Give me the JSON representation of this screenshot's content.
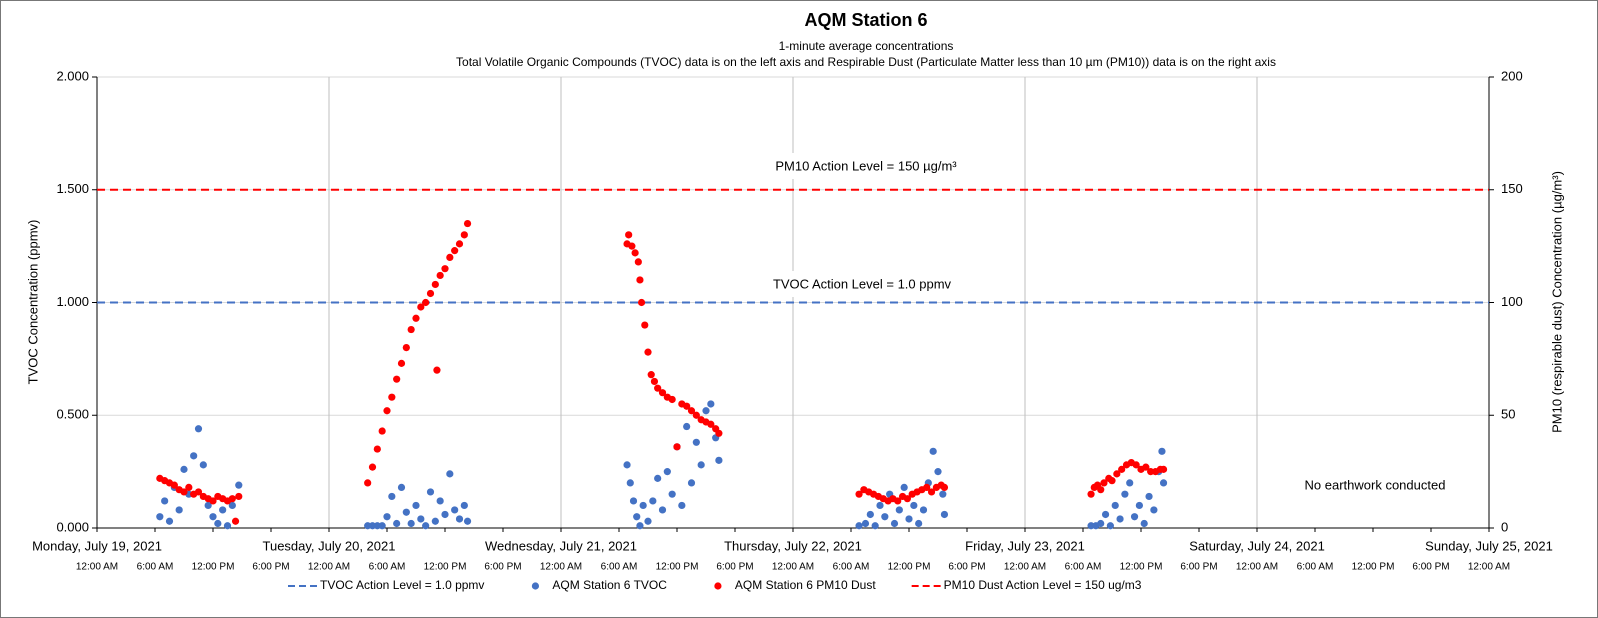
{
  "chart_data": {
    "type": "scatter",
    "title": "AQM Station 6",
    "subtitle": "1-minute average concentrations",
    "subtitle2": "Total Volatile Organic Compounds (TVOC) data is on the left axis and Respirable Dust (Particulate Matter less than 10 µm (PM10)) data is on the right axis",
    "ylabel": "TVOC Concentration (ppmv)",
    "y2label": "PM10 (respirable dust) Concentration (µg/m³)",
    "xlim": [
      "2021-07-19 00:00",
      "2021-07-25 00:00"
    ],
    "xticks": [
      {
        "value": "2021-07-19 00:00",
        "label": "Monday, July 19, 2021"
      },
      {
        "value": "2021-07-20 00:00",
        "label": "Tuesday, July 20, 2021"
      },
      {
        "value": "2021-07-21 00:00",
        "label": "Wednesday, July 21, 2021"
      },
      {
        "value": "2021-07-22 00:00",
        "label": "Thursday, July 22, 2021"
      },
      {
        "value": "2021-07-23 00:00",
        "label": "Friday, July 23, 2021"
      },
      {
        "value": "2021-07-24 00:00",
        "label": "Saturday, July 24, 2021"
      },
      {
        "value": "2021-07-25 00:00",
        "label": "Sunday, July 25, 2021"
      }
    ],
    "xticks_time": [
      {
        "value": "2021-07-19 00:00",
        "label": "12:00 AM"
      },
      {
        "value": "2021-07-19 06:00",
        "label": "6:00 AM"
      },
      {
        "value": "2021-07-19 12:00",
        "label": "12:00 PM"
      },
      {
        "value": "2021-07-19 18:00",
        "label": "6:00 PM"
      },
      {
        "value": "2021-07-20 00:00",
        "label": "12:00 AM"
      },
      {
        "value": "2021-07-20 06:00",
        "label": "6:00 AM"
      },
      {
        "value": "2021-07-20 12:00",
        "label": "12:00 PM"
      },
      {
        "value": "2021-07-20 18:00",
        "label": "6:00 PM"
      },
      {
        "value": "2021-07-21 00:00",
        "label": "12:00 AM"
      },
      {
        "value": "2021-07-21 06:00",
        "label": "6:00 AM"
      },
      {
        "value": "2021-07-21 12:00",
        "label": "12:00 PM"
      },
      {
        "value": "2021-07-21 18:00",
        "label": "6:00 PM"
      },
      {
        "value": "2021-07-22 00:00",
        "label": "12:00 AM"
      },
      {
        "value": "2021-07-22 06:00",
        "label": "6:00 AM"
      },
      {
        "value": "2021-07-22 12:00",
        "label": "12:00 PM"
      },
      {
        "value": "2021-07-22 18:00",
        "label": "6:00 PM"
      },
      {
        "value": "2021-07-23 00:00",
        "label": "12:00 AM"
      },
      {
        "value": "2021-07-23 06:00",
        "label": "6:00 AM"
      },
      {
        "value": "2021-07-23 12:00",
        "label": "12:00 PM"
      },
      {
        "value": "2021-07-23 18:00",
        "label": "6:00 PM"
      },
      {
        "value": "2021-07-24 00:00",
        "label": "12:00 AM"
      },
      {
        "value": "2021-07-24 06:00",
        "label": "6:00 AM"
      },
      {
        "value": "2021-07-24 12:00",
        "label": "12:00 PM"
      },
      {
        "value": "2021-07-24 18:00",
        "label": "6:00 PM"
      },
      {
        "value": "2021-07-25 00:00",
        "label": "12:00 AM"
      }
    ],
    "ylim": [
      0,
      2
    ],
    "yticks": [
      {
        "value": 0,
        "label": "0.000"
      },
      {
        "value": 0.5,
        "label": "0.500"
      },
      {
        "value": 1,
        "label": "1.000"
      },
      {
        "value": 1.5,
        "label": "1.500"
      },
      {
        "value": 2,
        "label": "2.000"
      }
    ],
    "y2lim": [
      0,
      200
    ],
    "y2ticks": [
      0,
      50,
      100,
      150,
      200
    ],
    "grid": true,
    "annotations": [
      "PM10 Action Level = 150 µg/m³",
      "TVOC Action Level = 1.0 ppmv",
      "No earthwork conducted"
    ],
    "series": [
      {
        "name": "TVOC Action Level = 1.0 ppmv",
        "kind": "hline",
        "color": "#4472c4",
        "value": 1.0
      },
      {
        "name": "AQM Station 6 TVOC",
        "kind": "scatter",
        "color": "#4472c4",
        "x": [
          "2021-07-19 06:30",
          "2021-07-19 07:00",
          "2021-07-19 07:30",
          "2021-07-19 08:00",
          "2021-07-19 08:30",
          "2021-07-19 09:00",
          "2021-07-19 09:30",
          "2021-07-19 10:00",
          "2021-07-19 10:30",
          "2021-07-19 11:00",
          "2021-07-19 11:30",
          "2021-07-19 12:00",
          "2021-07-19 12:30",
          "2021-07-19 13:00",
          "2021-07-19 13:30",
          "2021-07-19 14:00",
          "2021-07-19 14:40",
          "2021-07-20 04:00",
          "2021-07-20 04:30",
          "2021-07-20 05:00",
          "2021-07-20 05:30",
          "2021-07-20 06:00",
          "2021-07-20 06:30",
          "2021-07-20 07:00",
          "2021-07-20 07:30",
          "2021-07-20 08:00",
          "2021-07-20 08:30",
          "2021-07-20 09:00",
          "2021-07-20 09:30",
          "2021-07-20 10:00",
          "2021-07-20 10:30",
          "2021-07-20 11:00",
          "2021-07-20 11:30",
          "2021-07-20 12:00",
          "2021-07-20 12:30",
          "2021-07-20 13:00",
          "2021-07-20 13:30",
          "2021-07-20 14:00",
          "2021-07-20 14:20",
          "2021-07-21 06:50",
          "2021-07-21 07:10",
          "2021-07-21 07:30",
          "2021-07-21 07:50",
          "2021-07-21 08:10",
          "2021-07-21 08:30",
          "2021-07-21 09:00",
          "2021-07-21 09:30",
          "2021-07-21 10:00",
          "2021-07-21 10:30",
          "2021-07-21 11:00",
          "2021-07-21 11:30",
          "2021-07-21 12:00",
          "2021-07-21 12:30",
          "2021-07-21 13:00",
          "2021-07-21 13:30",
          "2021-07-21 14:00",
          "2021-07-21 14:30",
          "2021-07-21 15:00",
          "2021-07-21 15:30",
          "2021-07-21 16:00",
          "2021-07-21 16:20",
          "2021-07-22 06:50",
          "2021-07-22 07:30",
          "2021-07-22 08:00",
          "2021-07-22 08:30",
          "2021-07-22 09:00",
          "2021-07-22 09:30",
          "2021-07-22 10:00",
          "2021-07-22 10:30",
          "2021-07-22 11:00",
          "2021-07-22 11:30",
          "2021-07-22 12:00",
          "2021-07-22 12:30",
          "2021-07-22 13:00",
          "2021-07-22 13:30",
          "2021-07-22 14:00",
          "2021-07-22 14:30",
          "2021-07-22 15:00",
          "2021-07-22 15:30",
          "2021-07-22 15:40",
          "2021-07-23 06:50",
          "2021-07-23 07:20",
          "2021-07-23 07:50",
          "2021-07-23 08:20",
          "2021-07-23 08:50",
          "2021-07-23 09:20",
          "2021-07-23 09:50",
          "2021-07-23 10:20",
          "2021-07-23 10:50",
          "2021-07-23 11:20",
          "2021-07-23 11:50",
          "2021-07-23 12:20",
          "2021-07-23 12:50",
          "2021-07-23 13:20",
          "2021-07-23 13:50",
          "2021-07-23 14:10",
          "2021-07-23 14:20"
        ],
        "values": [
          0.05,
          0.12,
          0.03,
          0.18,
          0.08,
          0.26,
          0.15,
          0.32,
          0.44,
          0.28,
          0.1,
          0.05,
          0.02,
          0.08,
          0.01,
          0.1,
          0.19,
          0.01,
          0.01,
          0.01,
          0.01,
          0.05,
          0.14,
          0.02,
          0.18,
          0.07,
          0.02,
          0.1,
          0.04,
          0.01,
          0.16,
          0.03,
          0.12,
          0.06,
          0.24,
          0.08,
          0.04,
          0.1,
          0.03,
          0.28,
          0.2,
          0.12,
          0.05,
          0.01,
          0.1,
          0.03,
          0.12,
          0.22,
          0.08,
          0.25,
          0.15,
          0.36,
          0.1,
          0.45,
          0.2,
          0.38,
          0.28,
          0.52,
          0.55,
          0.4,
          0.3,
          0.01,
          0.02,
          0.06,
          0.01,
          0.1,
          0.05,
          0.15,
          0.02,
          0.08,
          0.18,
          0.04,
          0.1,
          0.02,
          0.08,
          0.2,
          0.34,
          0.25,
          0.15,
          0.06,
          0.01,
          0.01,
          0.02,
          0.06,
          0.01,
          0.1,
          0.04,
          0.15,
          0.2,
          0.05,
          0.1,
          0.02,
          0.14,
          0.08,
          0.25,
          0.34,
          0.2
        ]
      },
      {
        "name": "AQM Station 6 PM10 Dust",
        "kind": "scatter",
        "color": "#ff0000",
        "axis": "y2",
        "x": [
          "2021-07-19 06:30",
          "2021-07-19 07:00",
          "2021-07-19 07:30",
          "2021-07-19 08:00",
          "2021-07-19 08:30",
          "2021-07-19 09:00",
          "2021-07-19 09:30",
          "2021-07-19 10:00",
          "2021-07-19 10:30",
          "2021-07-19 11:00",
          "2021-07-19 11:30",
          "2021-07-19 12:00",
          "2021-07-19 12:30",
          "2021-07-19 13:00",
          "2021-07-19 13:30",
          "2021-07-19 14:00",
          "2021-07-19 14:20",
          "2021-07-19 14:40",
          "2021-07-20 04:00",
          "2021-07-20 04:30",
          "2021-07-20 05:00",
          "2021-07-20 05:30",
          "2021-07-20 06:00",
          "2021-07-20 06:30",
          "2021-07-20 07:00",
          "2021-07-20 07:30",
          "2021-07-20 08:00",
          "2021-07-20 08:30",
          "2021-07-20 09:00",
          "2021-07-20 09:30",
          "2021-07-20 10:00",
          "2021-07-20 10:30",
          "2021-07-20 11:00",
          "2021-07-20 11:10",
          "2021-07-20 11:30",
          "2021-07-20 12:00",
          "2021-07-20 12:30",
          "2021-07-20 13:00",
          "2021-07-20 13:30",
          "2021-07-20 14:00",
          "2021-07-20 14:20",
          "2021-07-21 06:50",
          "2021-07-21 07:00",
          "2021-07-21 07:20",
          "2021-07-21 07:40",
          "2021-07-21 08:00",
          "2021-07-21 08:10",
          "2021-07-21 08:20",
          "2021-07-21 08:40",
          "2021-07-21 09:00",
          "2021-07-21 09:20",
          "2021-07-21 09:40",
          "2021-07-21 10:00",
          "2021-07-21 10:30",
          "2021-07-21 11:00",
          "2021-07-21 11:30",
          "2021-07-21 12:00",
          "2021-07-21 12:30",
          "2021-07-21 13:00",
          "2021-07-21 13:30",
          "2021-07-21 14:00",
          "2021-07-21 14:30",
          "2021-07-21 15:00",
          "2021-07-21 15:30",
          "2021-07-21 16:00",
          "2021-07-21 16:20",
          "2021-07-22 06:50",
          "2021-07-22 07:20",
          "2021-07-22 07:50",
          "2021-07-22 08:20",
          "2021-07-22 08:50",
          "2021-07-22 09:20",
          "2021-07-22 09:50",
          "2021-07-22 10:20",
          "2021-07-22 10:50",
          "2021-07-22 11:20",
          "2021-07-22 11:50",
          "2021-07-22 12:20",
          "2021-07-22 12:50",
          "2021-07-22 13:20",
          "2021-07-22 13:50",
          "2021-07-22 14:20",
          "2021-07-22 14:50",
          "2021-07-22 15:20",
          "2021-07-22 15:40",
          "2021-07-23 06:50",
          "2021-07-23 07:10",
          "2021-07-23 07:30",
          "2021-07-23 07:50",
          "2021-07-23 08:10",
          "2021-07-23 08:40",
          "2021-07-23 09:00",
          "2021-07-23 09:30",
          "2021-07-23 10:00",
          "2021-07-23 10:30",
          "2021-07-23 11:00",
          "2021-07-23 11:30",
          "2021-07-23 12:00",
          "2021-07-23 12:30",
          "2021-07-23 13:00",
          "2021-07-23 13:30",
          "2021-07-23 14:00",
          "2021-07-23 14:20"
        ],
        "values": [
          22,
          21,
          20,
          19,
          17,
          16,
          18,
          15,
          16,
          14,
          13,
          12,
          14,
          13,
          12,
          13,
          3,
          14,
          20,
          27,
          35,
          43,
          52,
          58,
          66,
          73,
          80,
          88,
          93,
          98,
          100,
          104,
          108,
          70,
          112,
          115,
          120,
          123,
          126,
          130,
          135,
          126,
          130,
          125,
          122,
          118,
          110,
          100,
          90,
          78,
          68,
          65,
          62,
          60,
          58,
          57,
          36,
          55,
          54,
          52,
          50,
          48,
          47,
          46,
          44,
          42,
          15,
          17,
          16,
          15,
          14,
          13,
          12,
          13,
          12,
          14,
          13,
          15,
          16,
          17,
          18,
          16,
          18,
          19,
          18,
          15,
          18,
          19,
          17,
          20,
          22,
          21,
          24,
          26,
          28,
          29,
          28,
          26,
          27,
          25,
          25,
          26,
          26
        ]
      },
      {
        "name": "PM10 Dust Action Level = 150 ug/m3",
        "kind": "hline",
        "color": "#ff0000",
        "axis": "y2",
        "value": 150
      }
    ]
  }
}
